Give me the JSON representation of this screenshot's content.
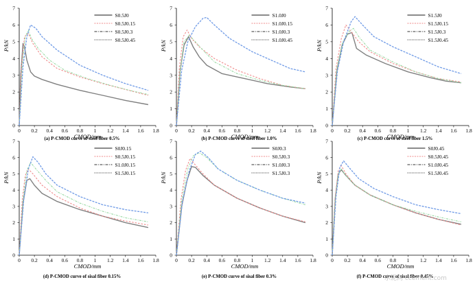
{
  "watermark": "水泥网 ccement.com",
  "chart_data": [
    {
      "type": "line",
      "caption": "(a) P-CMOD curve of steel fiber 0.5%",
      "xlabel": "CMOD/mm",
      "ylabel": "P/kN",
      "xlim": [
        0,
        1.8
      ],
      "ylim": [
        0,
        7
      ],
      "xticks": [
        "0",
        "0.2",
        "0.4",
        "0.6",
        "0.8",
        "1",
        "1.2",
        "1.4",
        "1.6",
        "1.8"
      ],
      "yticks": [
        "0",
        "1",
        "2",
        "3",
        "4",
        "5",
        "6",
        "7"
      ],
      "legend_position": "top-right",
      "series": [
        {
          "name": "S0.5J0",
          "x": [
            0,
            0.02,
            0.05,
            0.07,
            0.1,
            0.15,
            0.2,
            0.3,
            0.5,
            0.8,
            1.1,
            1.4,
            1.7
          ],
          "y": [
            0,
            3.0,
            4.9,
            4.7,
            3.9,
            3.2,
            2.95,
            2.75,
            2.45,
            2.1,
            1.8,
            1.5,
            1.25
          ]
        },
        {
          "name": "S0.5J0.15",
          "x": [
            0,
            0.03,
            0.07,
            0.12,
            0.18,
            0.3,
            0.5,
            0.8,
            1.1,
            1.4,
            1.7
          ],
          "y": [
            0,
            3.5,
            5.3,
            5.5,
            4.9,
            4.1,
            3.4,
            2.9,
            2.5,
            2.15,
            1.8
          ]
        },
        {
          "name": "S0.5J0.3",
          "x": [
            0,
            0.04,
            0.08,
            0.12,
            0.16,
            0.25,
            0.4,
            0.6,
            0.9,
            1.2,
            1.5,
            1.7
          ],
          "y": [
            0,
            3.5,
            5.3,
            5.7,
            5.2,
            4.6,
            3.9,
            3.3,
            2.8,
            2.4,
            2.05,
            1.85
          ]
        },
        {
          "name": "S0.5J0.45",
          "x": [
            0,
            0.05,
            0.1,
            0.15,
            0.22,
            0.3,
            0.5,
            0.8,
            1.1,
            1.4,
            1.7
          ],
          "y": [
            0,
            3.5,
            5.3,
            6.0,
            5.8,
            5.3,
            4.5,
            3.6,
            3.0,
            2.5,
            2.1
          ]
        }
      ]
    },
    {
      "type": "line",
      "caption": "(b) P-CMOD curve of steel fiber 1.0%",
      "xlabel": "CMOD/mm",
      "ylabel": "P/kN",
      "xlim": [
        0,
        1.8
      ],
      "ylim": [
        0,
        7
      ],
      "xticks": [
        "0",
        "0.2",
        "0.4",
        "0.6",
        "0.8",
        "1",
        "1.2",
        "1.4",
        "1.6",
        "1.8"
      ],
      "yticks": [
        "0",
        "1",
        "2",
        "3",
        "4",
        "5",
        "6",
        "7"
      ],
      "legend_position": "top-right",
      "series": [
        {
          "name": "S1.0J0",
          "x": [
            0,
            0.05,
            0.1,
            0.16,
            0.22,
            0.3,
            0.4,
            0.6,
            0.9,
            1.2,
            1.5,
            1.7
          ],
          "y": [
            0,
            3.3,
            4.8,
            5.3,
            4.7,
            4.1,
            3.6,
            3.1,
            2.8,
            2.5,
            2.3,
            2.2
          ]
        },
        {
          "name": "S1.0J0.15",
          "x": [
            0,
            0.04,
            0.09,
            0.14,
            0.2,
            0.3,
            0.5,
            0.8,
            1.1,
            1.4,
            1.7
          ],
          "y": [
            0,
            3.5,
            5.3,
            5.7,
            5.2,
            4.7,
            4.0,
            3.3,
            2.8,
            2.4,
            2.2
          ]
        },
        {
          "name": "S1.0J0.3",
          "x": [
            0,
            0.05,
            0.1,
            0.17,
            0.25,
            0.35,
            0.5,
            0.8,
            1.1,
            1.4,
            1.7
          ],
          "y": [
            0,
            3.3,
            5.0,
            5.4,
            5.0,
            4.5,
            3.8,
            3.1,
            2.7,
            2.4,
            2.2
          ]
        },
        {
          "name": "S1.0J0.45",
          "x": [
            0,
            0.07,
            0.15,
            0.25,
            0.35,
            0.4,
            0.5,
            0.7,
            1.0,
            1.3,
            1.5,
            1.7
          ],
          "y": [
            0,
            3.3,
            5.0,
            5.9,
            6.4,
            6.45,
            6.0,
            5.2,
            4.4,
            3.8,
            3.4,
            3.2
          ]
        }
      ]
    },
    {
      "type": "line",
      "caption": "(c) P-CMOD curve of steel fiber 1.5%",
      "xlabel": "CMOD/mm",
      "ylabel": "P/kN",
      "xlim": [
        0,
        1.8
      ],
      "ylim": [
        0,
        7
      ],
      "xticks": [
        "0",
        "0.2",
        "0.4",
        "0.6",
        "0.8",
        "1",
        "1.2",
        "1.4",
        "1.6",
        "1.8"
      ],
      "yticks": [
        "0",
        "1",
        "2",
        "3",
        "4",
        "5",
        "6",
        "7"
      ],
      "legend_position": "top-right",
      "series": [
        {
          "name": "S1.5J0",
          "x": [
            0,
            0.06,
            0.13,
            0.2,
            0.26,
            0.32,
            0.45,
            0.7,
            1.0,
            1.3,
            1.5,
            1.7
          ],
          "y": [
            0,
            3.2,
            4.8,
            5.45,
            5.55,
            4.6,
            4.2,
            3.7,
            3.2,
            2.85,
            2.65,
            2.55
          ]
        },
        {
          "name": "S1.5J0.15",
          "x": [
            0,
            0.05,
            0.12,
            0.18,
            0.25,
            0.35,
            0.5,
            0.8,
            1.1,
            1.4,
            1.7
          ],
          "y": [
            0,
            3.4,
            5.2,
            6.0,
            5.6,
            5.0,
            4.4,
            3.7,
            3.2,
            2.8,
            2.6
          ]
        },
        {
          "name": "S1.5J0.3",
          "x": [
            0,
            0.06,
            0.14,
            0.22,
            0.28,
            0.35,
            0.5,
            0.8,
            1.1,
            1.4,
            1.7
          ],
          "y": [
            0,
            3.4,
            5.0,
            5.6,
            5.8,
            5.3,
            4.5,
            3.8,
            3.2,
            2.8,
            2.55
          ]
        },
        {
          "name": "S1.5J0.45",
          "x": [
            0,
            0.07,
            0.15,
            0.25,
            0.3,
            0.4,
            0.55,
            0.8,
            1.1,
            1.4,
            1.7
          ],
          "y": [
            0,
            3.3,
            5.0,
            6.2,
            6.5,
            6.0,
            5.3,
            4.7,
            4.1,
            3.5,
            3.1
          ]
        }
      ]
    },
    {
      "type": "line",
      "caption": "(d) P-CMOD curve of sisal fiber 0.15%",
      "xlabel": "CMOD/mm",
      "ylabel": "P/kN",
      "xlim": [
        0,
        1.8
      ],
      "ylim": [
        0,
        7
      ],
      "xticks": [
        "0",
        "0.2",
        "0.4",
        "0.6",
        "0.8",
        "1",
        "1.2",
        "1.4",
        "1.6",
        "1.8"
      ],
      "yticks": [
        "0",
        "1",
        "2",
        "3",
        "4",
        "5",
        "6",
        "7"
      ],
      "legend_position": "top-right",
      "series": [
        {
          "name": "S0J0.15",
          "x": [
            0,
            0.05,
            0.1,
            0.14,
            0.2,
            0.3,
            0.5,
            0.8,
            1.1,
            1.4,
            1.7
          ],
          "y": [
            0,
            3.2,
            4.6,
            4.7,
            4.3,
            3.8,
            3.3,
            2.8,
            2.4,
            2.0,
            1.7
          ]
        },
        {
          "name": "S0.5J0.15",
          "x": [
            0,
            0.04,
            0.08,
            0.12,
            0.18,
            0.3,
            0.5,
            0.8,
            1.1,
            1.4,
            1.7
          ],
          "y": [
            0,
            3.4,
            4.9,
            5.3,
            5.0,
            4.3,
            3.6,
            2.9,
            2.4,
            2.1,
            1.85
          ]
        },
        {
          "name": "S1.0J0.15",
          "x": [
            0,
            0.05,
            0.1,
            0.15,
            0.22,
            0.35,
            0.5,
            0.8,
            1.1,
            1.4,
            1.7
          ],
          "y": [
            0,
            3.4,
            5.2,
            5.7,
            5.3,
            4.6,
            3.9,
            3.2,
            2.7,
            2.3,
            2.05
          ]
        },
        {
          "name": "S1.5J0.15",
          "x": [
            0,
            0.06,
            0.12,
            0.18,
            0.25,
            0.35,
            0.5,
            0.8,
            1.1,
            1.4,
            1.7
          ],
          "y": [
            0,
            3.4,
            5.3,
            6.05,
            5.7,
            5.0,
            4.3,
            3.6,
            3.1,
            2.8,
            2.6
          ]
        }
      ]
    },
    {
      "type": "line",
      "caption": "(e) P-CMOD curve of sisal fiber 0.3%",
      "xlabel": "CMOD/mm",
      "ylabel": "P/kN",
      "xlim": [
        0,
        1.8
      ],
      "ylim": [
        0,
        7
      ],
      "xticks": [
        "0",
        "0.2",
        "0.4",
        "0.6",
        "0.8",
        "1",
        "1.2",
        "1.4",
        "1.6",
        "1.8"
      ],
      "yticks": [
        "0",
        "1",
        "2",
        "3",
        "4",
        "5",
        "6",
        "7"
      ],
      "legend_position": "top-right",
      "series": [
        {
          "name": "S0J0.3",
          "x": [
            0,
            0.07,
            0.14,
            0.2,
            0.25,
            0.35,
            0.5,
            0.8,
            1.1,
            1.4,
            1.7
          ],
          "y": [
            0,
            3.0,
            4.6,
            5.45,
            5.4,
            4.9,
            4.3,
            3.5,
            2.9,
            2.4,
            2.0
          ]
        },
        {
          "name": "S0.5J0.3",
          "x": [
            0,
            0.06,
            0.12,
            0.18,
            0.24,
            0.35,
            0.5,
            0.8,
            1.1,
            1.4,
            1.7
          ],
          "y": [
            0,
            3.4,
            5.2,
            5.95,
            5.6,
            5.0,
            4.3,
            3.5,
            2.9,
            2.4,
            2.05
          ]
        },
        {
          "name": "S1.0J0.3",
          "x": [
            0,
            0.07,
            0.15,
            0.22,
            0.3,
            0.4,
            0.55,
            0.8,
            1.1,
            1.4,
            1.7
          ],
          "y": [
            0,
            3.4,
            5.3,
            6.1,
            6.3,
            6.0,
            5.3,
            4.6,
            4.0,
            3.5,
            3.1
          ]
        },
        {
          "name": "S1.5J0.3",
          "x": [
            0,
            0.08,
            0.17,
            0.25,
            0.32,
            0.42,
            0.55,
            0.8,
            1.1,
            1.4,
            1.7
          ],
          "y": [
            0,
            3.3,
            5.2,
            6.2,
            6.4,
            6.0,
            5.3,
            4.6,
            4.0,
            3.5,
            3.2
          ]
        }
      ]
    },
    {
      "type": "line",
      "caption": "(f) P-CMOD curve of sisal fiber 0.45%",
      "xlabel": "CMOD/mm",
      "ylabel": "P/kN",
      "xlim": [
        0,
        1.8
      ],
      "ylim": [
        0,
        7
      ],
      "xticks": [
        "0",
        "0.2",
        "0.4",
        "0.6",
        "0.8",
        "1",
        "1.2",
        "1.4",
        "1.6",
        "1.8"
      ],
      "yticks": [
        "0",
        "1",
        "2",
        "3",
        "4",
        "5",
        "6",
        "7"
      ],
      "legend_position": "top-right",
      "series": [
        {
          "name": "S0J0.45",
          "x": [
            0,
            0.04,
            0.08,
            0.12,
            0.18,
            0.3,
            0.5,
            0.8,
            1.1,
            1.4,
            1.7
          ],
          "y": [
            0,
            3.5,
            5.0,
            5.25,
            4.9,
            4.3,
            3.7,
            3.1,
            2.6,
            2.2,
            1.9
          ]
        },
        {
          "name": "S0.5J0.45",
          "x": [
            0,
            0.04,
            0.08,
            0.12,
            0.18,
            0.3,
            0.5,
            0.8,
            1.1,
            1.4,
            1.7
          ],
          "y": [
            0,
            3.6,
            5.2,
            5.5,
            5.0,
            4.3,
            3.7,
            3.1,
            2.6,
            2.2,
            1.85
          ]
        },
        {
          "name": "S1.0J0.45",
          "x": [
            0,
            0.04,
            0.08,
            0.12,
            0.18,
            0.3,
            0.5,
            0.8,
            1.1,
            1.4,
            1.7
          ],
          "y": [
            0,
            3.4,
            5.0,
            5.3,
            4.9,
            4.3,
            3.7,
            3.1,
            2.7,
            2.35,
            2.05
          ]
        },
        {
          "name": "S1.5J0.45",
          "x": [
            0,
            0.05,
            0.1,
            0.15,
            0.22,
            0.35,
            0.55,
            0.8,
            1.1,
            1.4,
            1.7
          ],
          "y": [
            0,
            3.6,
            5.4,
            5.8,
            5.4,
            4.7,
            4.1,
            3.6,
            3.1,
            2.8,
            2.55
          ]
        }
      ]
    }
  ]
}
